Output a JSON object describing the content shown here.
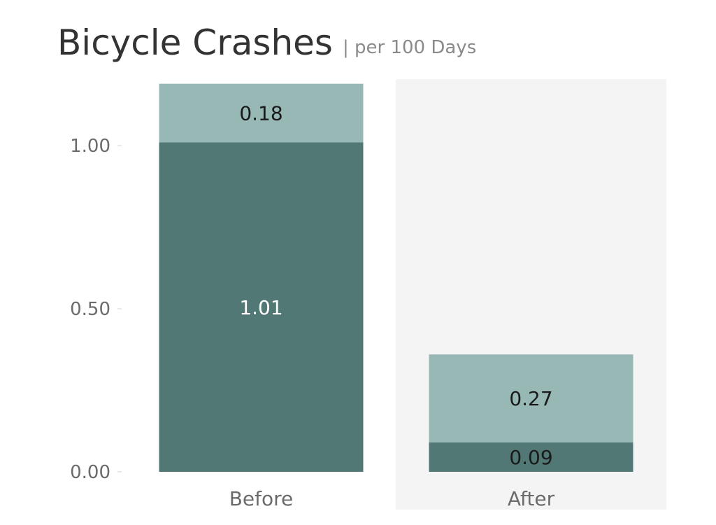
{
  "chart_data": {
    "type": "bar",
    "stacked": true,
    "title": "Bicycle Crashes",
    "subtitle": "| per 100 Days",
    "categories": [
      "Before",
      "After"
    ],
    "highlighted_category": "After",
    "series": [
      {
        "values": [
          1.01,
          0.09
        ],
        "color": "#527875",
        "label_color": "#ffffff"
      },
      {
        "values": [
          0.18,
          0.27
        ],
        "color": "#97b8b5",
        "label_color": "#1a1a1a"
      }
    ],
    "data_labels": [
      [
        "1.01",
        "0.09"
      ],
      [
        "0.18",
        "0.27"
      ]
    ],
    "label_colors": [
      [
        "#ffffff",
        "#1a1a1a"
      ],
      [
        "#1a1a1a",
        "#1a1a1a"
      ]
    ],
    "yticks": [
      0,
      0.5,
      1.0
    ],
    "ytick_labels": [
      "0.00",
      "0.50",
      "1.00"
    ],
    "ylim": [
      0,
      1.2
    ],
    "grid": false,
    "colors": {
      "highlight_band": "#f4f4f4",
      "axis_tick": "#cfcfcf"
    }
  }
}
